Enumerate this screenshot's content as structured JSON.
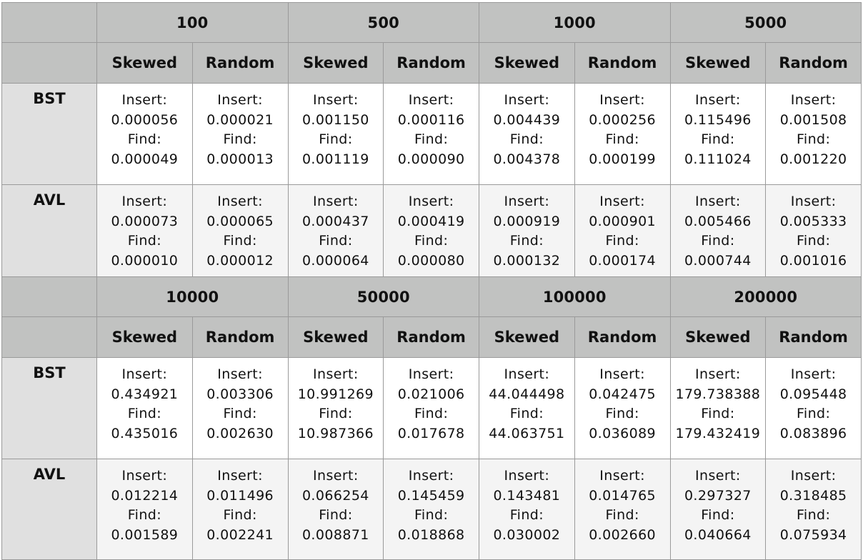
{
  "labels": {
    "skewed": "Skewed",
    "random": "Random",
    "bst": "BST",
    "avl": "AVL",
    "insert": "Insert:",
    "find": "Find:"
  },
  "tables": [
    {
      "sizes": [
        "100",
        "500",
        "1000",
        "5000"
      ],
      "rows": [
        {
          "name": "BST",
          "cells": [
            {
              "insert": "0.000056",
              "find": "0.000049"
            },
            {
              "insert": "0.000021",
              "find": "0.000013"
            },
            {
              "insert": "0.001150",
              "find": "0.001119"
            },
            {
              "insert": "0.000116",
              "find": "0.000090"
            },
            {
              "insert": "0.004439",
              "find": "0.004378"
            },
            {
              "insert": "0.000256",
              "find": "0.000199"
            },
            {
              "insert": "0.115496",
              "find": "0.111024"
            },
            {
              "insert": "0.001508",
              "find": "0.001220"
            }
          ]
        },
        {
          "name": "AVL",
          "cells": [
            {
              "insert": "0.000073",
              "find": "0.000010"
            },
            {
              "insert": "0.000065",
              "find": "0.000012"
            },
            {
              "insert": "0.000437",
              "find": "0.000064"
            },
            {
              "insert": "0.000419",
              "find": "0.000080"
            },
            {
              "insert": "0.000919",
              "find": "0.000132"
            },
            {
              "insert": "0.000901",
              "find": "0.000174"
            },
            {
              "insert": "0.005466",
              "find": "0.000744"
            },
            {
              "insert": "0.005333",
              "find": "0.001016"
            }
          ]
        }
      ]
    },
    {
      "sizes": [
        "10000",
        "50000",
        "100000",
        "200000"
      ],
      "rows": [
        {
          "name": "BST",
          "cells": [
            {
              "insert": "0.434921",
              "find": "0.435016"
            },
            {
              "insert": "0.003306",
              "find": "0.002630"
            },
            {
              "insert": "10.991269",
              "find": "10.987366"
            },
            {
              "insert": "0.021006",
              "find": "0.017678"
            },
            {
              "insert": "44.044498",
              "find": "44.063751"
            },
            {
              "insert": "0.042475",
              "find": "0.036089"
            },
            {
              "insert": "179.738388",
              "find": "179.432419"
            },
            {
              "insert": "0.095448",
              "find": "0.083896"
            }
          ]
        },
        {
          "name": "AVL",
          "cells": [
            {
              "insert": "0.012214",
              "find": "0.001589"
            },
            {
              "insert": "0.011496",
              "find": "0.002241"
            },
            {
              "insert": "0.066254",
              "find": "0.008871"
            },
            {
              "insert": "0.145459",
              "find": "0.018868"
            },
            {
              "insert": "0.143481",
              "find": "0.030002"
            },
            {
              "insert": "0.014765",
              "find": "0.002660"
            },
            {
              "insert": "0.297327",
              "find": "0.040664"
            },
            {
              "insert": "0.318485",
              "find": "0.075934"
            }
          ]
        }
      ]
    }
  ]
}
